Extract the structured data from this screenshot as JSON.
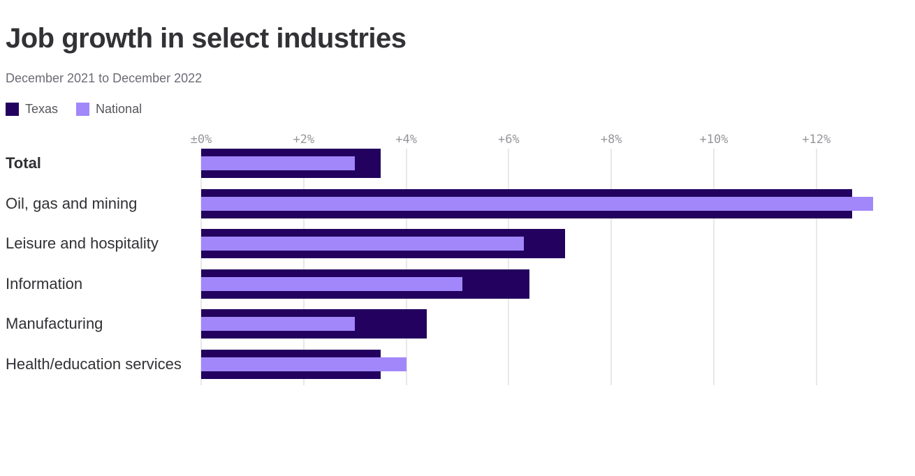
{
  "chart_data": {
    "type": "bar",
    "orientation": "horizontal",
    "title": "Job growth in select industries",
    "subtitle": "December 2021 to December 2022",
    "categories": [
      {
        "label": "Total",
        "bold": true
      },
      {
        "label": "Oil, gas and mining",
        "bold": false
      },
      {
        "label": "Leisure and hospitality",
        "bold": false
      },
      {
        "label": "Information",
        "bold": false
      },
      {
        "label": "Manufacturing",
        "bold": false
      },
      {
        "label": "Health/education services",
        "bold": false
      }
    ],
    "series": [
      {
        "name": "Texas",
        "color": "#22025e",
        "values": [
          3.5,
          12.7,
          7.1,
          6.4,
          4.4,
          3.5
        ]
      },
      {
        "name": "National",
        "color": "#a287fa",
        "values": [
          3.0,
          13.1,
          6.3,
          5.1,
          3.0,
          4.0
        ]
      }
    ],
    "value_unit": "%",
    "x_axis": {
      "ticks": [
        {
          "value": 0,
          "label": "±0%"
        },
        {
          "value": 2,
          "label": "+2%"
        },
        {
          "value": 4,
          "label": "+4%"
        },
        {
          "value": 6,
          "label": "+6%"
        },
        {
          "value": 8,
          "label": "+8%"
        },
        {
          "value": 10,
          "label": "+10%"
        },
        {
          "value": 12,
          "label": "+12%"
        }
      ],
      "min": 0,
      "max": 13.9,
      "grid": true
    },
    "legend_position": "top-left",
    "colors": {
      "texas": "#22025e",
      "national": "#a287fa",
      "gridline": "#e8e8e8",
      "title_text": "#323236",
      "subtitle_text": "#6b6b74",
      "axis_text": "#96969b",
      "label_text": "#313135"
    }
  }
}
